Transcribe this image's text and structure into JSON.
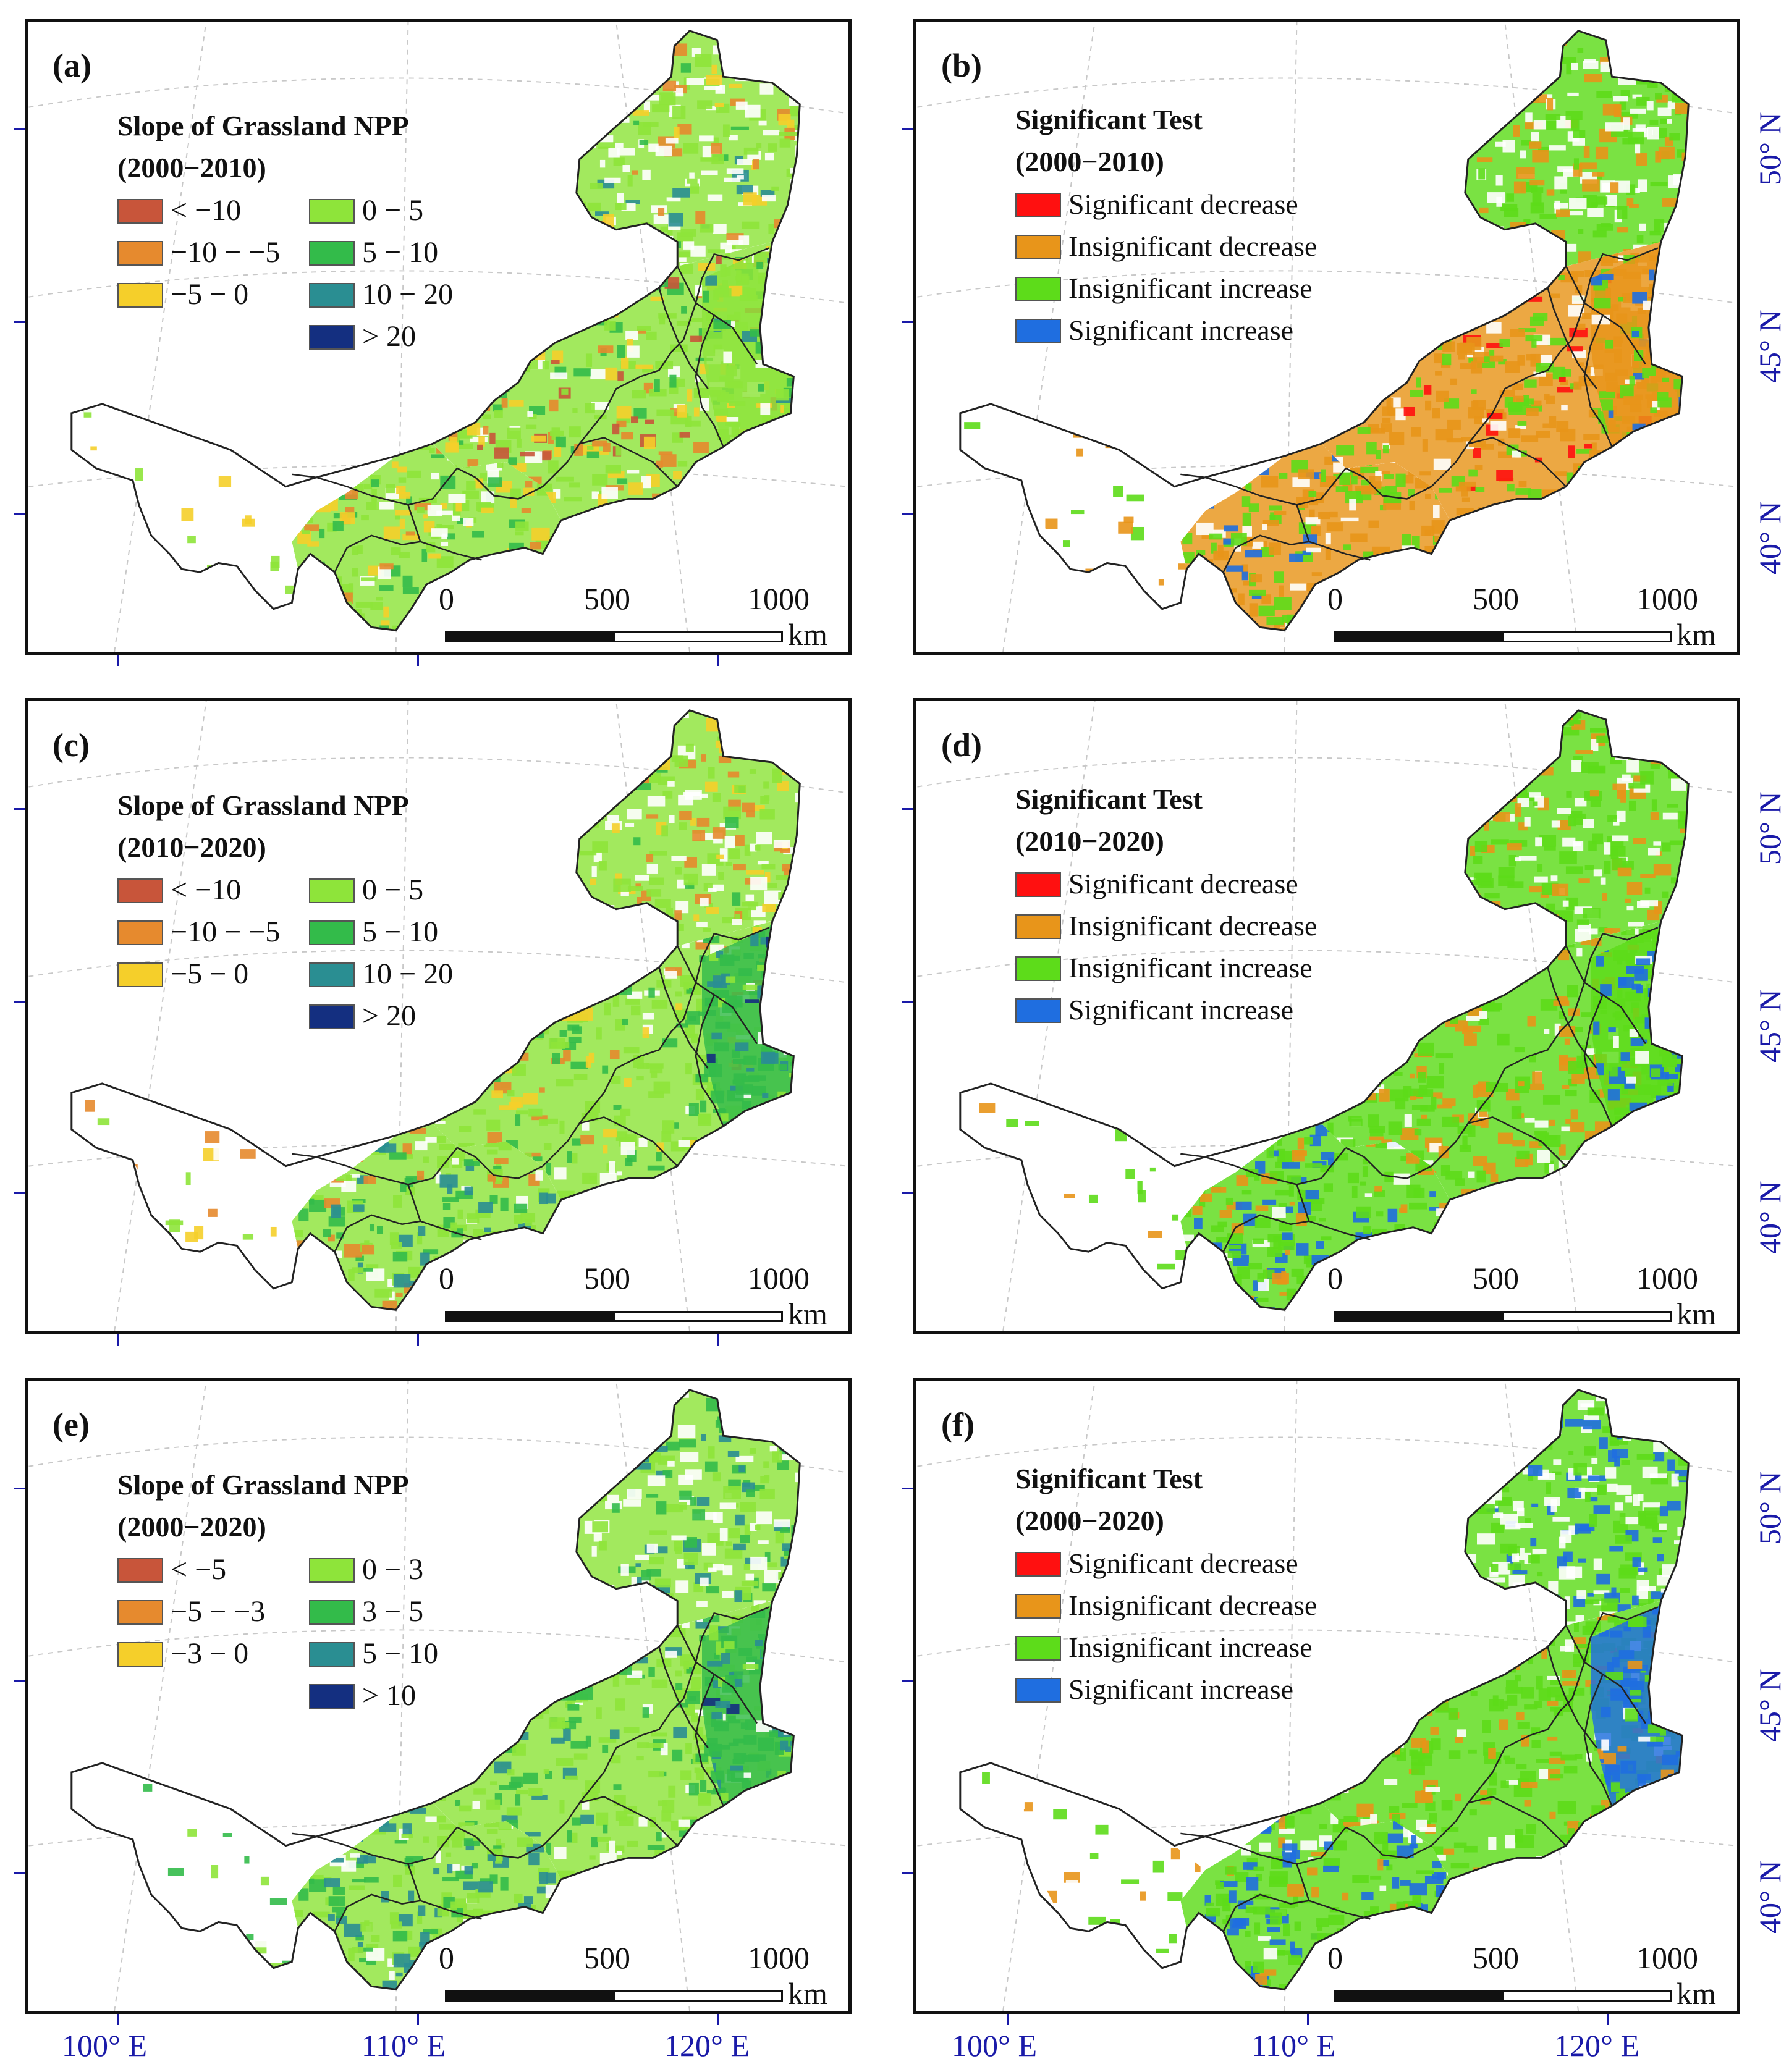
{
  "panels": [
    {
      "label": "(a)",
      "legend_type": "slope",
      "legend_title": "Slope of Grassland NPP",
      "legend_period": "(2000−2010)",
      "classes": [
        "< −10",
        "−10 − −5",
        "−5 − 0",
        "0 − 5",
        "5 − 10",
        "10 − 20",
        "> 20"
      ]
    },
    {
      "label": "(b)",
      "legend_type": "significance",
      "legend_title": "Significant Test",
      "legend_period": "(2000−2010)",
      "classes": [
        "Significant decrease",
        "Insignificant  decrease",
        "Insignificant increase",
        "Significant increase"
      ]
    },
    {
      "label": "(c)",
      "legend_type": "slope",
      "legend_title": "Slope of Grassland NPP",
      "legend_period": "(2010−2020)",
      "classes": [
        "< −10",
        "−10 − −5",
        "−5 − 0",
        "0 − 5",
        "5 − 10",
        "10 − 20",
        "> 20"
      ]
    },
    {
      "label": "(d)",
      "legend_type": "significance",
      "legend_title": "Significant Test",
      "legend_period": "(2010−2020)",
      "classes": [
        "Significant decrease",
        "Insignificant decrease",
        "Insignificant increase",
        "Significant increase"
      ]
    },
    {
      "label": "(e)",
      "legend_type": "slope",
      "legend_title": "Slope of Grassland NPP",
      "legend_period": "(2000−2020)",
      "classes": [
        "< −5",
        "−5 − −3",
        "−3 − 0",
        "0 − 3",
        "3 − 5",
        "5 − 10",
        "> 10"
      ]
    },
    {
      "label": "(f)",
      "legend_type": "significance",
      "legend_title": "Significant Test",
      "legend_period": "(2000−2020)",
      "classes": [
        "Significant decrease",
        "Insignificant decrease",
        "Insignificant increase",
        "Significant increase"
      ]
    }
  ],
  "slope_colors": [
    "#c8553a",
    "#e68a2e",
    "#f5cf2a",
    "#8ee43a",
    "#33bb4a",
    "#2a8e92",
    "#142f80"
  ],
  "significance_colors": [
    "#ff1010",
    "#e8951a",
    "#5ddc1a",
    "#1f6ee0"
  ],
  "scale_bar": {
    "ticks": [
      "0",
      "500",
      "1000"
    ],
    "unit": "km"
  },
  "longitude_labels": [
    "100° E",
    "110° E",
    "120° E"
  ],
  "latitude_labels": [
    "50° N",
    "45° N",
    "40° N"
  ]
}
